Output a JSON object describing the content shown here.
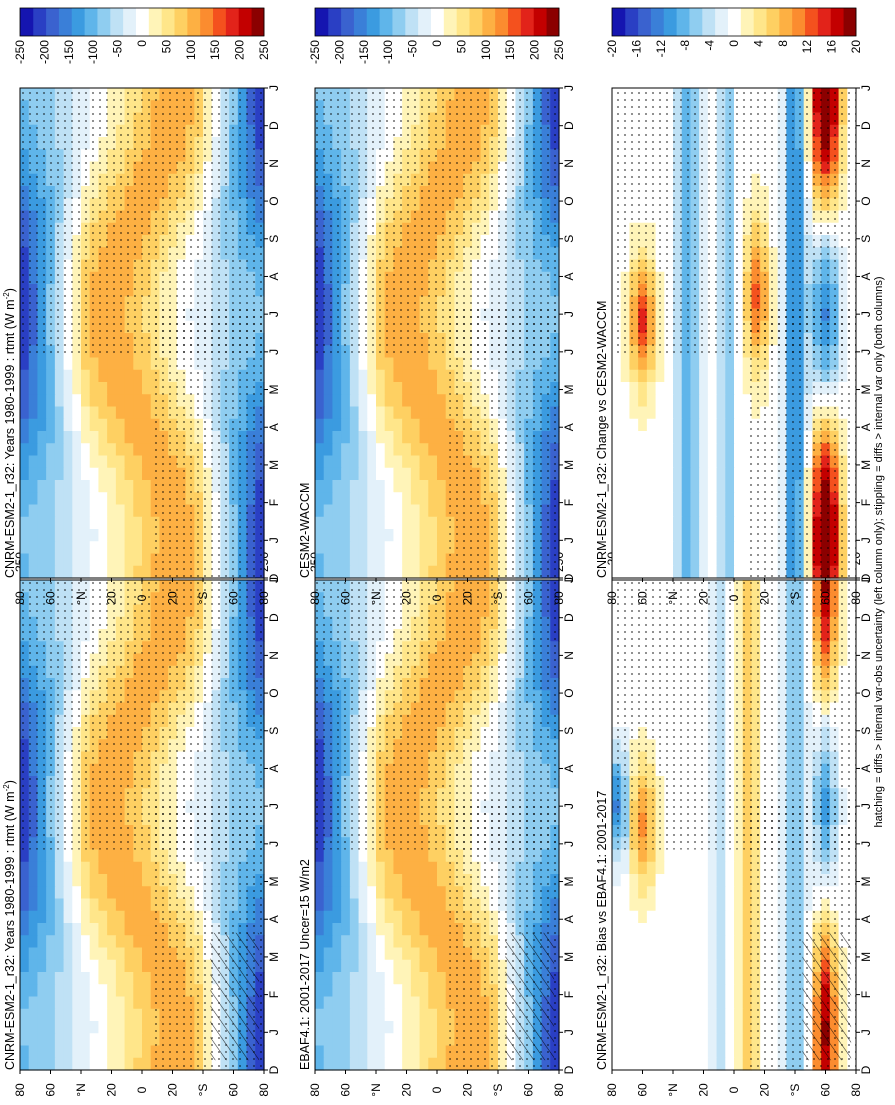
{
  "footer_note": "hatching = diffs > internal var-obs uncertainty (left column only); stippling = diffs > internal var only (both columns)",
  "month_ticks": [
    "D",
    "J",
    "F",
    "M",
    "A",
    "M",
    "J",
    "J",
    "A",
    "S",
    "O",
    "N",
    "D",
    "J"
  ],
  "lat_ticks": [
    "80",
    "60",
    "°N",
    "20",
    "0",
    "20",
    "°S",
    "60",
    "80"
  ],
  "colors": {
    "scale": [
      "#8b0000",
      "#c30000",
      "#e2231a",
      "#f4511e",
      "#fb8c2f",
      "#fdb043",
      "#fed062",
      "#ffe68a",
      "#fff4b8",
      "#ffffff",
      "#e3f1fa",
      "#bfe1f5",
      "#8fcdf0",
      "#5fb5ea",
      "#3b9be0",
      "#3a7fd8",
      "#3a62cf",
      "#2a3fc4",
      "#1515b0"
    ],
    "stipple": "#000000"
  },
  "chart_data": [
    {
      "type": "heatmap",
      "title": "CNRM-ESM2-1_r32: Years 1980-1999 : rtmt (W m",
      "title_sup": "-2",
      "title_end": ")",
      "x": [
        "D",
        "J",
        "F",
        "M",
        "A",
        "M",
        "J",
        "J",
        "A",
        "S",
        "O",
        "N",
        "D",
        "J"
      ],
      "y": [
        "80",
        "60",
        "°N",
        "20",
        "0",
        "20",
        "°S",
        "60",
        "80"
      ],
      "colorbar_ticks": [
        "250",
        "200",
        "150",
        "100",
        "50",
        "0",
        "-50",
        "-100",
        "-150",
        "-200",
        "-250"
      ],
      "zlim": [
        -250,
        250
      ],
      "pattern": "annual",
      "hatched": true
    },
    {
      "type": "heatmap",
      "title": "CNRM-ESM2-1_r32: Years 1980-1999 : rtmt (W m",
      "title_sup": "-2",
      "title_end": ")",
      "x": [
        "D",
        "J",
        "F",
        "M",
        "A",
        "M",
        "J",
        "J",
        "A",
        "S",
        "O",
        "N",
        "D",
        "J"
      ],
      "y": [
        "80",
        "60",
        "°N",
        "20",
        "0",
        "20",
        "°S",
        "60",
        "80"
      ],
      "colorbar_ticks": [
        "250",
        "200",
        "150",
        "100",
        "50",
        "0",
        "-50",
        "-100",
        "-150",
        "-200",
        "-250"
      ],
      "zlim": [
        -250,
        250
      ],
      "pattern": "annual",
      "hatched": false
    },
    {
      "type": "heatmap",
      "title": "EBAF4.1: 2001-2017 Uncer=15 W/m2",
      "x": [
        "D",
        "J",
        "F",
        "M",
        "A",
        "M",
        "J",
        "J",
        "A",
        "S",
        "O",
        "N",
        "D",
        "J"
      ],
      "y": [
        "80",
        "60",
        "°N",
        "20",
        "0",
        "20",
        "°S",
        "60",
        "80"
      ],
      "colorbar_ticks": [
        "250",
        "200",
        "150",
        "100",
        "50",
        "0",
        "-50",
        "-100",
        "-150",
        "-200",
        "-250"
      ],
      "zlim": [
        -250,
        250
      ],
      "pattern": "annual",
      "hatched": true
    },
    {
      "type": "heatmap",
      "title": "CESM2-WACCM",
      "x": [
        "D",
        "J",
        "F",
        "M",
        "A",
        "M",
        "J",
        "J",
        "A",
        "S",
        "O",
        "N",
        "D",
        "J"
      ],
      "y": [
        "80",
        "60",
        "°N",
        "20",
        "0",
        "20",
        "°S",
        "60",
        "80"
      ],
      "colorbar_ticks": [
        "250",
        "200",
        "150",
        "100",
        "50",
        "0",
        "-50",
        "-100",
        "-150",
        "-200",
        "-250"
      ],
      "zlim": [
        -250,
        250
      ],
      "pattern": "annual",
      "hatched": false
    },
    {
      "type": "heatmap",
      "title": "CNRM-ESM2-1_r32: Bias vs EBAF4.1: 2001-2017",
      "x": [
        "D",
        "J",
        "F",
        "M",
        "A",
        "M",
        "J",
        "J",
        "A",
        "S",
        "O",
        "N",
        "D",
        "J"
      ],
      "y": [
        "80",
        "60",
        "°N",
        "20",
        "0",
        "20",
        "°S",
        "60",
        "80"
      ],
      "colorbar_ticks": [
        "20",
        "16",
        "12",
        "8",
        "4",
        "0",
        "-4",
        "-8",
        "-12",
        "-16",
        "-20"
      ],
      "zlim": [
        -20,
        20
      ],
      "pattern": "bias",
      "hatched": true
    },
    {
      "type": "heatmap",
      "title": "CNRM-ESM2-1_r32: Change vs CESM2-WACCM",
      "x": [
        "D",
        "J",
        "F",
        "M",
        "A",
        "M",
        "J",
        "J",
        "A",
        "S",
        "O",
        "N",
        "D",
        "J"
      ],
      "y": [
        "80",
        "60",
        "°N",
        "20",
        "0",
        "20",
        "°S",
        "60",
        "80"
      ],
      "colorbar_ticks": [
        "20",
        "16",
        "12",
        "8",
        "4",
        "0",
        "-4",
        "-8",
        "-12",
        "-16",
        "-20"
      ],
      "zlim": [
        -20,
        20
      ],
      "pattern": "change",
      "hatched": false
    }
  ]
}
